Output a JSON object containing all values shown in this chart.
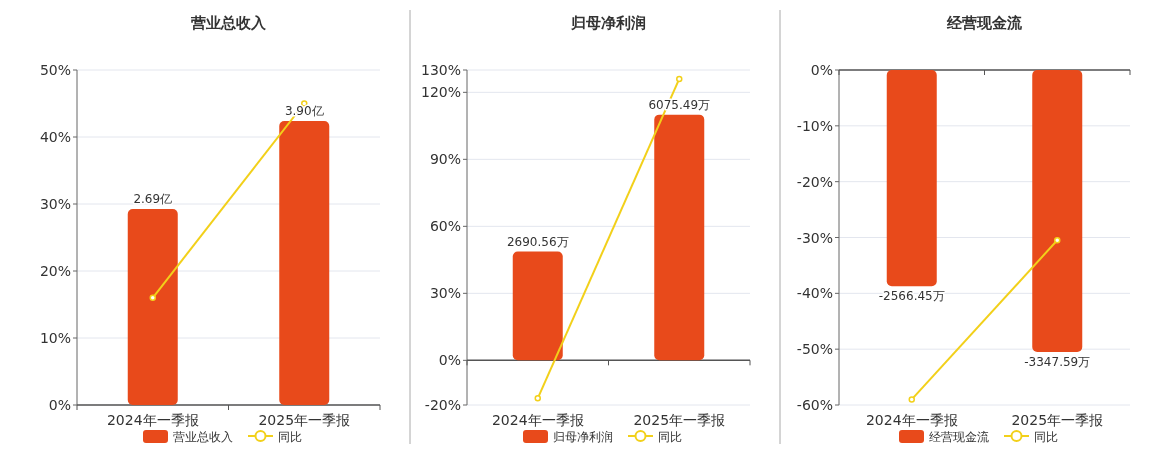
{
  "chart_data": [
    {
      "type": "bar",
      "title": "营业总收入",
      "categories": [
        "2024年一季报",
        "2025年一季报"
      ],
      "series": [
        {
          "name": "营业总收入",
          "color": "#e84a1b",
          "axis": "y2",
          "values": [
            2.69,
            3.9
          ],
          "value_labels": [
            "2.69亿",
            "3.90亿"
          ]
        },
        {
          "name": "同比",
          "type": "line",
          "color": "#f2d01a",
          "marker": "circle",
          "values": [
            16,
            45
          ]
        }
      ],
      "ylim": [
        0,
        50
      ],
      "yticks": [
        {
          "value": 0,
          "label": "0%"
        },
        {
          "value": 10,
          "label": "10%"
        },
        {
          "value": 20,
          "label": "20%"
        },
        {
          "value": 30,
          "label": "30%"
        },
        {
          "value": 40,
          "label": "40%"
        },
        {
          "value": 50,
          "label": "50%"
        }
      ],
      "y2lim": [
        0,
        4.6
      ],
      "grid": "y",
      "legend": "bottom"
    },
    {
      "type": "bar",
      "title": "归母净利润",
      "categories": [
        "2024年一季报",
        "2025年一季报"
      ],
      "series": [
        {
          "name": "归母净利润",
          "color": "#e84a1b",
          "axis": "y2",
          "values": [
            2690.56,
            6075.49
          ],
          "value_labels": [
            "2690.56万",
            "6075.49万"
          ]
        },
        {
          "name": "同比",
          "type": "line",
          "color": "#f2d01a",
          "marker": "circle",
          "values": [
            -17,
            126
          ]
        }
      ],
      "ylim": [
        -20,
        130
      ],
      "yticks": [
        {
          "value": -20,
          "label": "-20%"
        },
        {
          "value": 0,
          "label": "0%"
        },
        {
          "value": 30,
          "label": "30%"
        },
        {
          "value": 60,
          "label": "60%"
        },
        {
          "value": 90,
          "label": "90%"
        },
        {
          "value": 120,
          "label": "120%"
        },
        {
          "value": 130,
          "label": "130%"
        }
      ],
      "y2lim": [
        -1105,
        7180
      ],
      "grid": "y",
      "legend": "bottom"
    },
    {
      "type": "bar",
      "title": "经营现金流",
      "categories": [
        "2024年一季报",
        "2025年一季报"
      ],
      "series": [
        {
          "name": "经营现金流",
          "color": "#e84a1b",
          "axis": "y2",
          "values": [
            -2566.45,
            -3347.59
          ],
          "value_labels": [
            "-2566.45万",
            "-3347.59万"
          ]
        },
        {
          "name": "同比",
          "type": "line",
          "color": "#f2d01a",
          "marker": "circle",
          "values": [
            -59,
            -30.5
          ]
        }
      ],
      "ylim": [
        -60,
        0
      ],
      "yticks": [
        {
          "value": -60,
          "label": "-60%"
        },
        {
          "value": -50,
          "label": "-50%"
        },
        {
          "value": -40,
          "label": "-40%"
        },
        {
          "value": -30,
          "label": "-30%"
        },
        {
          "value": -20,
          "label": "-20%"
        },
        {
          "value": -10,
          "label": "-10%"
        },
        {
          "value": 0,
          "label": "0%"
        }
      ],
      "y2lim": [
        -3977,
        0
      ],
      "grid": "y",
      "legend": "bottom"
    }
  ]
}
